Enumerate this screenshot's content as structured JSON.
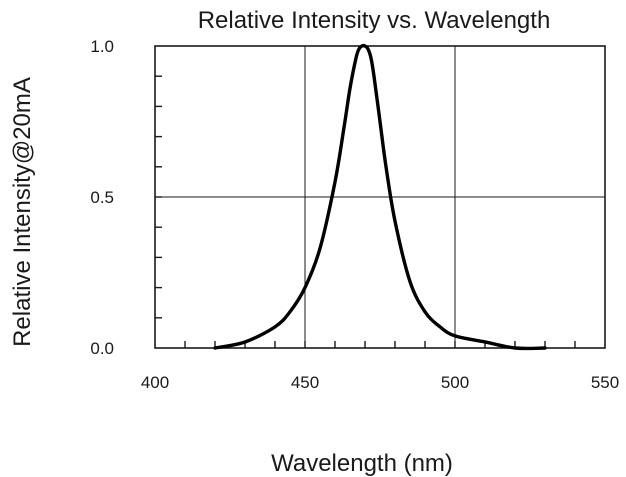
{
  "chart_data": {
    "type": "line",
    "title": "Relative Intensity vs. Wavelength",
    "xlabel": "Wavelength (nm)",
    "ylabel": "Relative Intensity@20mA",
    "xlim": [
      400,
      550
    ],
    "ylim": [
      0,
      1
    ],
    "x_major_ticks": [
      400,
      450,
      500,
      550
    ],
    "x_tick_labels": [
      "400",
      "450",
      "500",
      "550"
    ],
    "x_minor_tick_step": 10,
    "y_major_ticks": [
      0,
      0.5,
      1
    ],
    "y_tick_labels": [
      "0.0",
      "0.5",
      "1.0"
    ],
    "y_minor_tick_step": 0.1,
    "grid": true,
    "legend": "none",
    "line_color": "#000000",
    "series": [
      {
        "x": [
          420,
          430,
          440,
          445,
          450,
          455,
          460,
          463,
          465,
          467,
          468,
          469,
          470,
          471,
          472,
          473,
          475,
          477,
          480,
          485,
          490,
          495,
          500,
          510,
          520,
          530
        ],
        "y": [
          0.0,
          0.02,
          0.07,
          0.12,
          0.2,
          0.33,
          0.55,
          0.73,
          0.86,
          0.96,
          0.99,
          1.0,
          1.0,
          0.99,
          0.96,
          0.9,
          0.75,
          0.6,
          0.42,
          0.22,
          0.12,
          0.07,
          0.04,
          0.02,
          0.0,
          0.0
        ]
      }
    ]
  }
}
